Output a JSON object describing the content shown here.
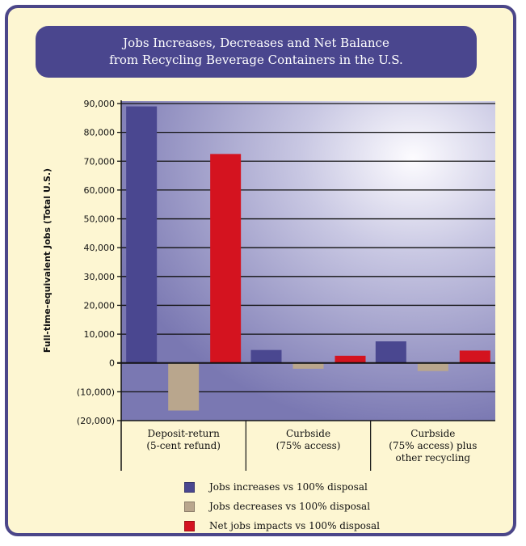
{
  "colors": {
    "increase": "#4a4790",
    "decrease": "#b9a68d",
    "net": "#d4131f",
    "frame": "#4b4689",
    "card_bg": "#fdf6d2"
  },
  "chart_data": {
    "type": "bar",
    "title": "Jobs Increases, Decreases and Net Balance from Recycling Beverage Containers in the U.S.",
    "title_lines": [
      "Jobs Increases, Decreases and Net Balance",
      "from Recycling Beverage Containers in the U.S."
    ],
    "ylabel": "Full-time-equivalent Jobs (Total U.S.)",
    "xlabel": "",
    "ylim": [
      -20000,
      90000
    ],
    "yticks": [
      90000,
      80000,
      70000,
      60000,
      50000,
      40000,
      30000,
      20000,
      10000,
      0,
      -10000,
      -20000
    ],
    "ytick_labels": [
      "90,000",
      "80,000",
      "70,000",
      "60,000",
      "50,000",
      "40,000",
      "30,000",
      "20,000",
      "10,000",
      "0",
      "(10,000)",
      "(20,000)"
    ],
    "grid": true,
    "legend_position": "bottom",
    "categories": [
      {
        "lines": [
          "Deposit-return",
          "(5-cent refund)"
        ]
      },
      {
        "lines": [
          "Curbside",
          "(75% access)"
        ]
      },
      {
        "lines": [
          "Curbside",
          "(75% access) plus",
          "other recycling"
        ]
      }
    ],
    "series": [
      {
        "name": "Jobs increases vs 100% disposal",
        "color_key": "increase",
        "values": [
          89000,
          4500,
          7500
        ]
      },
      {
        "name": "Jobs decreases vs 100% disposal",
        "color_key": "decrease",
        "values": [
          -16500,
          -2000,
          -2800
        ]
      },
      {
        "name": "Net jobs impacts vs 100% disposal",
        "color_key": "net",
        "values": [
          72500,
          2500,
          4300
        ]
      }
    ]
  }
}
